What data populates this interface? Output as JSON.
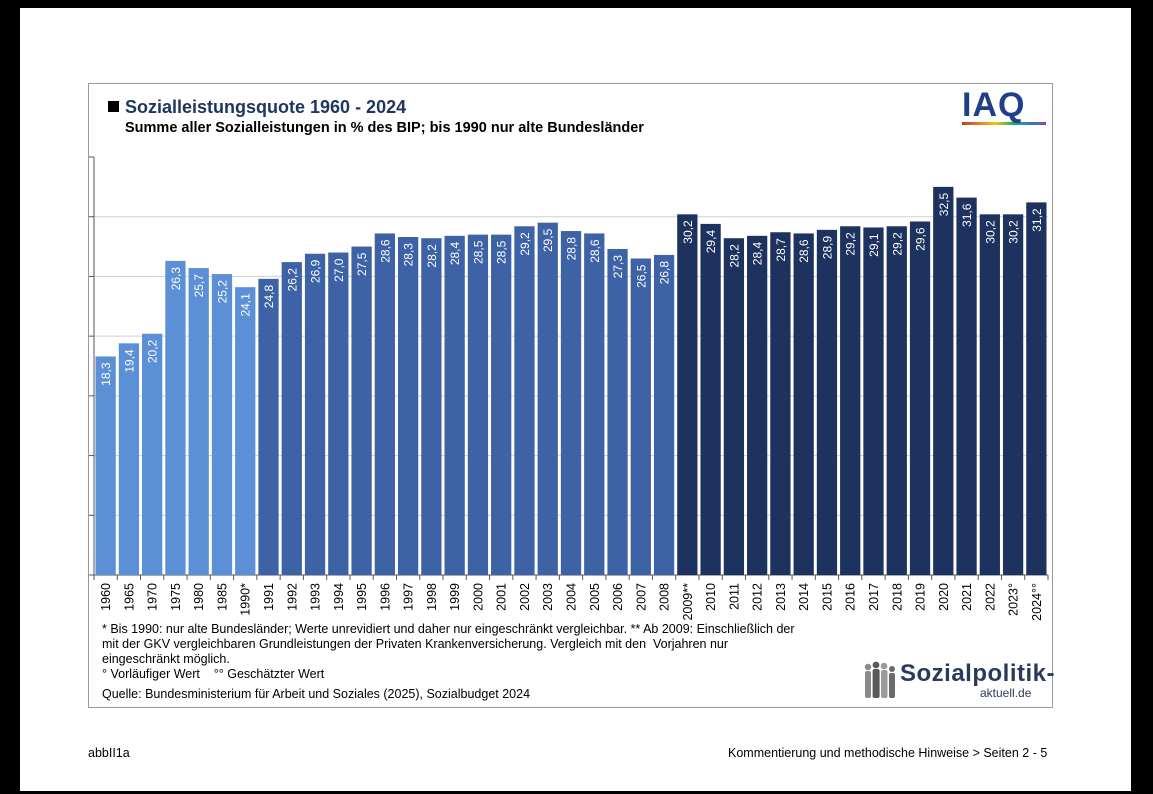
{
  "chart_data": {
    "type": "bar",
    "title": "Sozialleistungsquote 1960 - 2024",
    "subtitle": "Summe aller Sozialleistungen in % des BIP; bis 1990 nur alte Bundesländer",
    "categories": [
      "1960",
      "1965",
      "1970",
      "1975",
      "1980",
      "1985",
      "1990*",
      "1991",
      "1992",
      "1993",
      "1994",
      "1995",
      "1996",
      "1997",
      "1998",
      "1999",
      "2000",
      "2001",
      "2002",
      "2003",
      "2004",
      "2005",
      "2006",
      "2007",
      "2008",
      "2009**",
      "2010",
      "2011",
      "2012",
      "2013",
      "2014",
      "2015",
      "2016",
      "2017",
      "2018",
      "2019",
      "2020",
      "2021",
      "2022",
      "2023°",
      "2024°°"
    ],
    "values": [
      18.3,
      19.4,
      20.2,
      26.3,
      25.7,
      25.2,
      24.1,
      24.8,
      26.2,
      26.9,
      27.0,
      27.5,
      28.6,
      28.3,
      28.2,
      28.4,
      28.5,
      28.5,
      29.2,
      29.5,
      28.8,
      28.6,
      27.3,
      26.5,
      26.8,
      30.2,
      29.4,
      28.2,
      28.4,
      28.7,
      28.6,
      28.9,
      29.2,
      29.1,
      29.2,
      29.6,
      32.5,
      31.6,
      30.2,
      30.2,
      31.2
    ],
    "value_labels": [
      "18,3",
      "19,4",
      "20,2",
      "26,3",
      "25,7",
      "25,2",
      "24,1",
      "24,8",
      "26,2",
      "26,9",
      "27,0",
      "27,5",
      "28,6",
      "28,3",
      "28,2",
      "28,4",
      "28,5",
      "28,5",
      "29,2",
      "29,5",
      "28,8",
      "28,6",
      "27,3",
      "26,5",
      "26,8",
      "30,2",
      "29,4",
      "28,2",
      "28,4",
      "28,7",
      "28,6",
      "28,9",
      "29,2",
      "29,1",
      "29,2",
      "29,6",
      "32,5",
      "31,6",
      "30,2",
      "30,2",
      "31,2"
    ],
    "ylim": [
      0,
      35
    ],
    "yticks": [
      0,
      5,
      10,
      15,
      20,
      25,
      30,
      35
    ],
    "grid": true,
    "colors": {
      "bar_light": "#5b8fd6",
      "bar_mid": "#3d63a6",
      "bar_dark": "#1e3260"
    }
  },
  "notes": {
    "line1": "* Bis 1990: nur alte Bundesländer; Werte unrevidiert und daher nur eingeschränkt vergleichbar. ** Ab 2009: Einschließlich der",
    "line2": "mit der GKV vergleichbaren Grundleistungen der Privaten Krankenversicherung. Vergleich mit den  Vorjahren nur",
    "line3": "eingeschränkt möglich.",
    "line4": "° Vorläufiger Wert    °° Geschätzter Wert"
  },
  "source": "Quelle: Bundesministerium für Arbeit und Soziales (2025), Sozialbudget 2024",
  "logos": {
    "iaq": "IAQ",
    "sozialpolitik_main": "Sozialpolitik-",
    "sozialpolitik_sub": "aktuell.de"
  },
  "footer": {
    "left": "abbII1a",
    "right": "Kommentierung und methodische Hinweise > Seiten 2 - 5"
  }
}
